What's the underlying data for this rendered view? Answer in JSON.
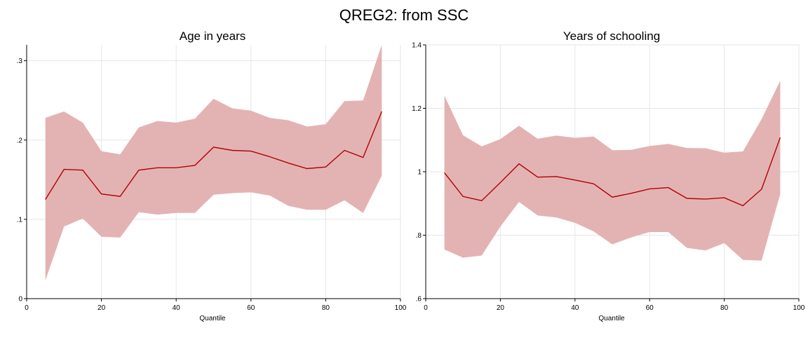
{
  "figure": {
    "title": "QREG2: from SSC"
  },
  "colors": {
    "band": "#e3b3b4",
    "line": "#b30000"
  },
  "chart_data": [
    {
      "type": "area",
      "title": "Age in years",
      "xlabel": "Quantile",
      "ylabel": "",
      "xlim": [
        0,
        100
      ],
      "ylim": [
        0,
        0.32
      ],
      "xticks": [
        0,
        20,
        40,
        60,
        80,
        100
      ],
      "xtick_labels": [
        "0",
        "20",
        "40",
        "60",
        "80",
        "100"
      ],
      "yticks": [
        0,
        0.1,
        0.2,
        0.3
      ],
      "ytick_labels": [
        "0",
        ".1",
        ".2",
        ".3"
      ],
      "grid": true,
      "x": [
        5,
        10,
        15,
        20,
        25,
        30,
        35,
        40,
        45,
        50,
        55,
        60,
        65,
        70,
        75,
        80,
        85,
        90,
        95
      ],
      "series": [
        {
          "name": "",
          "role": "estimate",
          "values": [
            0.125,
            0.163,
            0.162,
            0.132,
            0.129,
            0.162,
            0.165,
            0.165,
            0.168,
            0.191,
            0.187,
            0.186,
            0.179,
            0.171,
            0.164,
            0.166,
            0.187,
            0.178,
            0.236
          ]
        },
        {
          "name": "",
          "role": "lower",
          "values": [
            0.023,
            0.091,
            0.101,
            0.078,
            0.077,
            0.109,
            0.106,
            0.108,
            0.108,
            0.131,
            0.133,
            0.134,
            0.13,
            0.117,
            0.112,
            0.112,
            0.124,
            0.108,
            0.155
          ]
        },
        {
          "name": "",
          "role": "upper",
          "values": [
            0.228,
            0.236,
            0.222,
            0.186,
            0.182,
            0.216,
            0.224,
            0.222,
            0.227,
            0.252,
            0.24,
            0.237,
            0.228,
            0.225,
            0.217,
            0.22,
            0.249,
            0.25,
            0.32
          ]
        }
      ]
    },
    {
      "type": "area",
      "title": "Years of schooling",
      "xlabel": "Quantile",
      "ylabel": "",
      "xlim": [
        0,
        100
      ],
      "ylim": [
        0.6,
        1.4
      ],
      "xticks": [
        0,
        20,
        40,
        60,
        80,
        100
      ],
      "xtick_labels": [
        "0",
        "20",
        "40",
        "60",
        "80",
        "100"
      ],
      "yticks": [
        0.6,
        0.8,
        1.0,
        1.2,
        1.4
      ],
      "ytick_labels": [
        ".6",
        ".8",
        "1",
        "1.2",
        "1.4"
      ],
      "grid": true,
      "x": [
        5,
        10,
        15,
        20,
        25,
        30,
        35,
        40,
        45,
        50,
        55,
        60,
        65,
        70,
        75,
        80,
        85,
        90,
        95
      ],
      "series": [
        {
          "name": "",
          "role": "estimate",
          "values": [
            0.997,
            0.922,
            0.909,
            0.966,
            1.025,
            0.983,
            0.985,
            0.974,
            0.962,
            0.92,
            0.932,
            0.946,
            0.95,
            0.916,
            0.914,
            0.918,
            0.893,
            0.945,
            1.108
          ]
        },
        {
          "name": "",
          "role": "lower",
          "values": [
            0.755,
            0.729,
            0.736,
            0.827,
            0.905,
            0.862,
            0.856,
            0.839,
            0.812,
            0.771,
            0.793,
            0.81,
            0.81,
            0.76,
            0.752,
            0.775,
            0.722,
            0.72,
            0.93
          ]
        },
        {
          "name": "",
          "role": "upper",
          "values": [
            1.24,
            1.115,
            1.08,
            1.103,
            1.145,
            1.104,
            1.114,
            1.107,
            1.111,
            1.068,
            1.069,
            1.081,
            1.088,
            1.075,
            1.074,
            1.06,
            1.064,
            1.166,
            1.287
          ]
        }
      ]
    }
  ]
}
